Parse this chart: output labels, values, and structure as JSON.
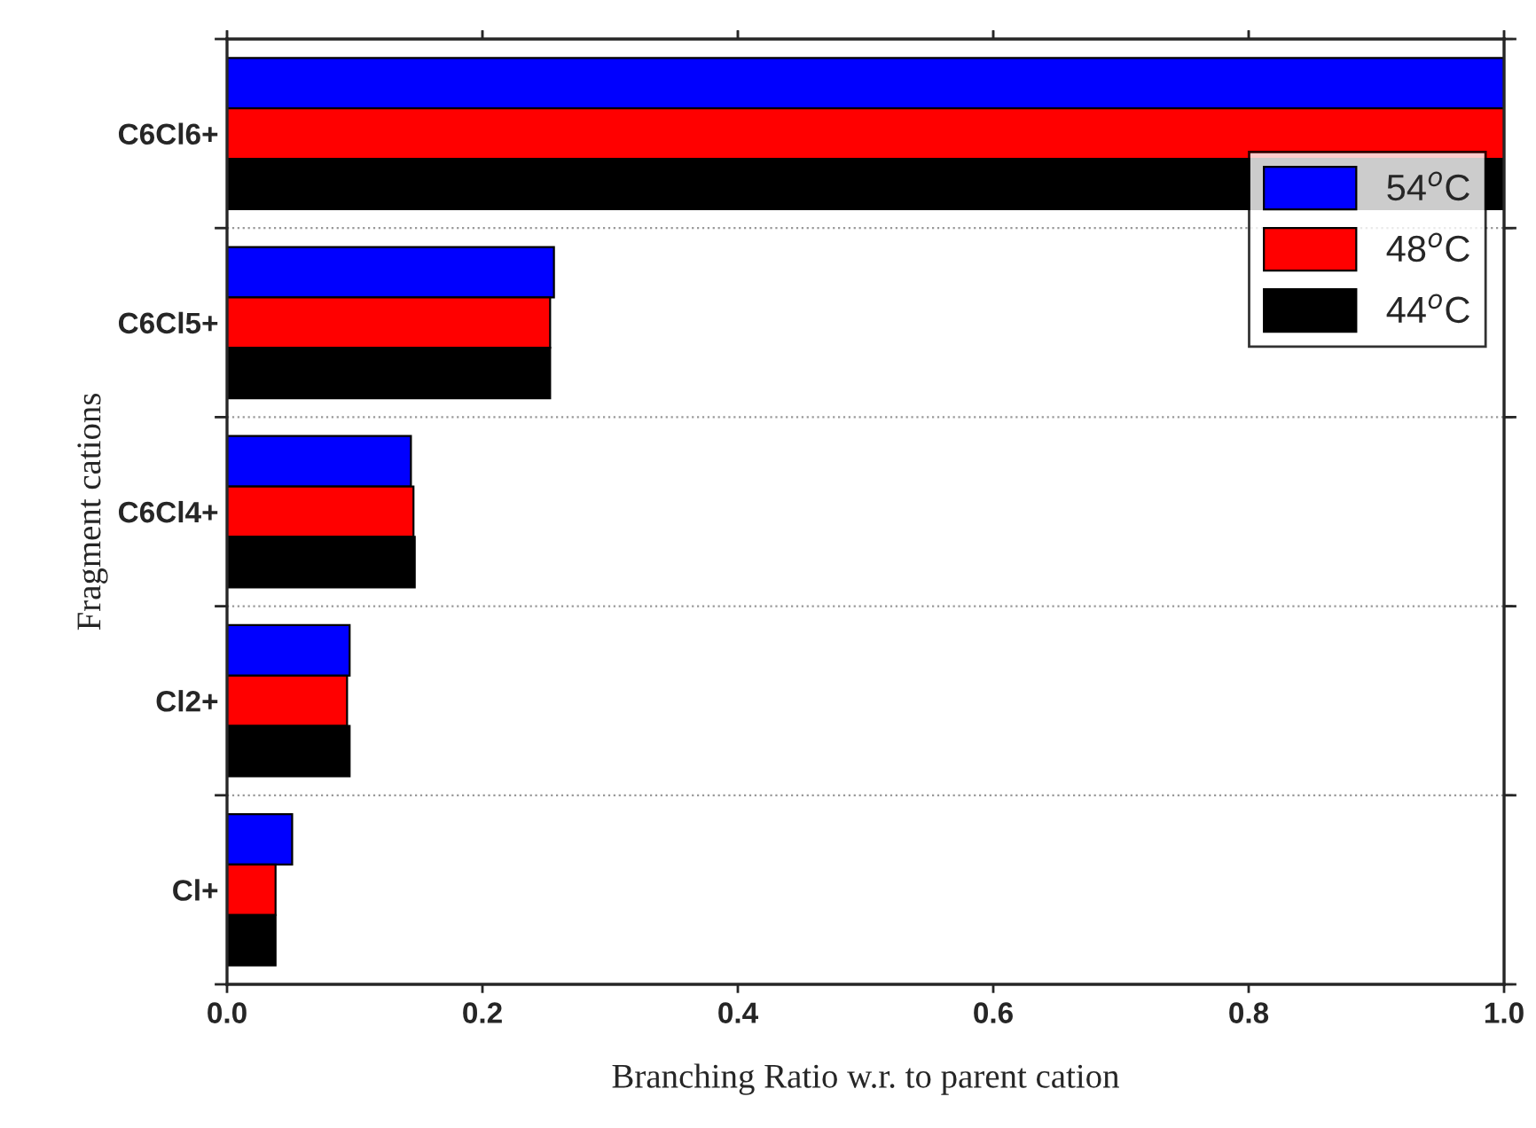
{
  "chart_data": {
    "type": "bar",
    "orientation": "horizontal",
    "xlabel": "Branching Ratio w.r. to parent cation",
    "ylabel": "Fragment cations",
    "categories": [
      "C6Cl6+",
      "C6Cl5+",
      "C6Cl4+",
      "Cl2+",
      "Cl+"
    ],
    "series": [
      {
        "name": "54$^{o}$C",
        "color": "#0000ff",
        "values": [
          1.0,
          0.256,
          0.144,
          0.096,
          0.051
        ]
      },
      {
        "name": "48$^{o}$C",
        "color": "#ff0000",
        "values": [
          1.0,
          0.253,
          0.146,
          0.094,
          0.038
        ]
      },
      {
        "name": "44$^{o}$C",
        "color": "#000000",
        "values": [
          1.0,
          0.253,
          0.147,
          0.096,
          0.038
        ]
      }
    ],
    "xlim": [
      0,
      1
    ],
    "xticks": [
      {
        "value": 0,
        "label": "0.0"
      },
      0.2,
      0.4,
      0.6,
      0.8,
      {
        "value": 1,
        "label": "1.0"
      }
    ],
    "grid": "y",
    "legend": "top right"
  }
}
